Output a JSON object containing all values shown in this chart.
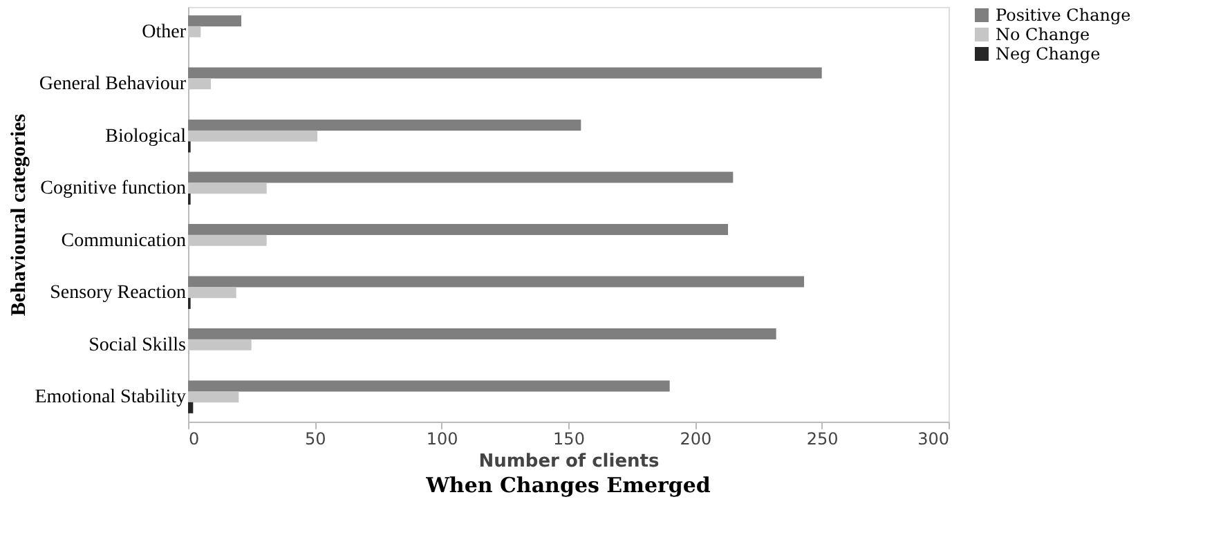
{
  "chart_data": {
    "type": "bar",
    "orientation": "horizontal",
    "title": "When Changes Emerged",
    "xlabel": "Number of clients",
    "ylabel": "Behavioural categories",
    "categories": [
      "Other",
      "General Behaviour",
      "Biological",
      "Cognitive function",
      "Communication",
      "Sensory Reaction",
      "Social Skills",
      "Emotional Stability"
    ],
    "series": [
      {
        "name": "Positive Change",
        "color": "#7f7f7f",
        "values": [
          21,
          250,
          155,
          215,
          213,
          243,
          232,
          190
        ]
      },
      {
        "name": "No Change",
        "color": "#c6c6c6",
        "values": [
          5,
          9,
          51,
          31,
          31,
          19,
          25,
          20
        ]
      },
      {
        "name": "Neg Change",
        "color": "#262626",
        "values": [
          0,
          0,
          1,
          1,
          0,
          1,
          0,
          2
        ]
      }
    ],
    "xlim": [
      0,
      300
    ],
    "xticks": [
      0,
      50,
      100,
      150,
      200,
      250,
      300
    ],
    "grid": false,
    "legend": "right"
  }
}
